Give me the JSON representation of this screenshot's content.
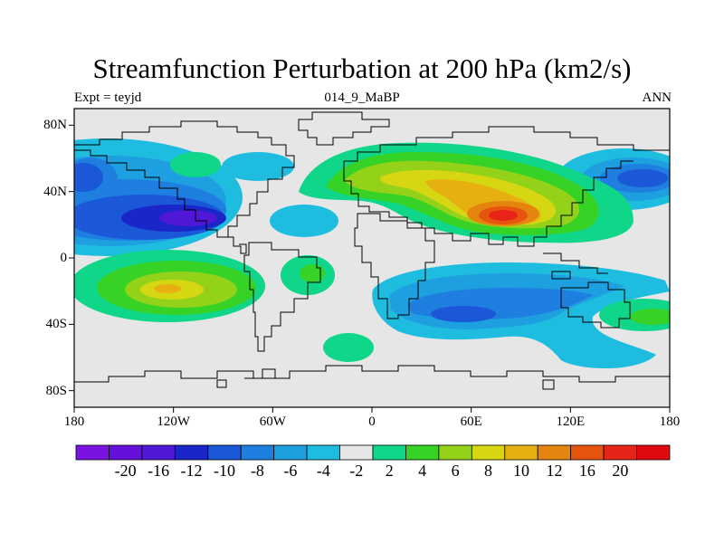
{
  "figure": {
    "title": "Streamfunction Perturbation at 200 hPa (km2/s)",
    "left_label": "Expt = teyjd",
    "center_label": "014_9_MaBP",
    "right_label": "ANN"
  },
  "map": {
    "projection": "cylindrical-equidistant",
    "lon_range": [
      -180,
      180
    ],
    "lat_range": [
      -90,
      90
    ],
    "lat_ticks": [
      {
        "value": 80,
        "label": "80N"
      },
      {
        "value": 40,
        "label": "40N"
      },
      {
        "value": 0,
        "label": "0"
      },
      {
        "value": -40,
        "label": "40S"
      },
      {
        "value": -80,
        "label": "80S"
      }
    ],
    "lon_ticks": [
      {
        "value": -180,
        "label": "180"
      },
      {
        "value": -120,
        "label": "120W"
      },
      {
        "value": -60,
        "label": "60W"
      },
      {
        "value": 0,
        "label": "0"
      },
      {
        "value": 60,
        "label": "60E"
      },
      {
        "value": 120,
        "label": "120E"
      },
      {
        "value": 180,
        "label": "180"
      }
    ],
    "background_color": "#e6e6e6",
    "coastline_color": "#000000"
  },
  "colorbar": {
    "bins": [
      {
        "color": "#7a12e0"
      },
      {
        "color": "#6610dc"
      },
      {
        "color": "#4f18d6"
      },
      {
        "color": "#1a26c8"
      },
      {
        "color": "#1a58d8"
      },
      {
        "color": "#1e7fe0"
      },
      {
        "color": "#1ea0e0"
      },
      {
        "color": "#1ebde0"
      },
      {
        "color": "#e6e6e6"
      },
      {
        "color": "#10d68a"
      },
      {
        "color": "#36d226"
      },
      {
        "color": "#94d21a"
      },
      {
        "color": "#d6d612"
      },
      {
        "color": "#e6b010"
      },
      {
        "color": "#e68410"
      },
      {
        "color": "#e65410"
      },
      {
        "color": "#e62418"
      },
      {
        "color": "#e00a10"
      }
    ],
    "tick_labels": [
      "-20",
      "-16",
      "-12",
      "-10",
      "-8",
      "-6",
      "-4",
      "-2",
      "2",
      "4",
      "6",
      "8",
      "10",
      "12",
      "16",
      "20"
    ]
  }
}
